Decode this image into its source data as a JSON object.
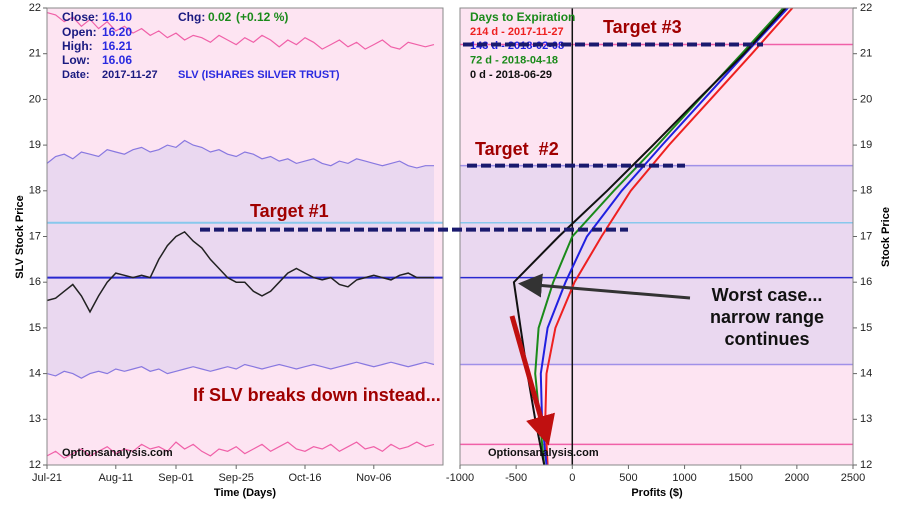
{
  "chart_data": [
    {
      "type": "line",
      "header": {
        "close_label": "Close:",
        "close": "16.10",
        "open_label": "Open:",
        "open": "16.20",
        "high_label": "High:",
        "high": "16.21",
        "low_label": "Low:",
        "low": "16.06",
        "date_label": "Date:",
        "date": "2017-11-27",
        "chg_label": "Chg:",
        "chg": "0.02",
        "chg_pct": "(+0.12 %)",
        "symbol": "SLV (ISHARES SILVER TRUST)"
      },
      "watermark": "Optionsanalysis.com",
      "x_label": "Time (Days)",
      "y_label": "SLV Stock Price",
      "categories": [
        "Jul-21",
        null,
        null,
        null,
        null,
        null,
        null,
        null,
        "Aug-11",
        null,
        null,
        null,
        null,
        null,
        null,
        "Sep-01",
        null,
        null,
        null,
        null,
        null,
        null,
        "Sep-25",
        null,
        null,
        null,
        null,
        null,
        null,
        null,
        "Oct-16",
        null,
        null,
        null,
        null,
        null,
        null,
        null,
        "Nov-06",
        null,
        null,
        null,
        null,
        null,
        null,
        null
      ],
      "series": [
        {
          "color": "#222222",
          "values": [
            15.6,
            15.65,
            15.8,
            15.95,
            15.7,
            15.35,
            15.7,
            16.0,
            16.2,
            16.15,
            16.1,
            16.15,
            16.1,
            16.5,
            16.8,
            17.0,
            17.1,
            16.9,
            16.75,
            16.5,
            16.3,
            16.1,
            16.0,
            16.0,
            15.8,
            15.7,
            15.8,
            16.0,
            16.2,
            16.3,
            16.2,
            16.1,
            16.05,
            16.1,
            15.95,
            15.9,
            16.05,
            16.1,
            16.15,
            16.1,
            16.05,
            16.15,
            16.2,
            16.1,
            16.1,
            16.1
          ]
        },
        {
          "color": "#8878e0",
          "values": [
            18.6,
            18.75,
            18.8,
            18.7,
            18.85,
            18.8,
            18.75,
            18.9,
            18.85,
            18.8,
            18.9,
            18.95,
            18.85,
            18.9,
            19.0,
            18.95,
            19.1,
            19.0,
            18.95,
            18.85,
            18.9,
            18.8,
            18.75,
            18.85,
            18.8,
            18.7,
            18.75,
            18.65,
            18.7,
            18.6,
            18.65,
            18.7,
            18.6,
            18.55,
            18.65,
            18.6,
            18.7,
            18.65,
            18.6,
            18.55,
            18.6,
            18.65,
            18.55,
            18.5,
            18.55,
            18.55
          ]
        },
        {
          "color": "#8878e0",
          "values": [
            14.0,
            13.95,
            14.05,
            14.0,
            13.9,
            14.0,
            14.05,
            14.0,
            14.1,
            14.05,
            14.1,
            14.15,
            14.05,
            14.1,
            14.0,
            14.05,
            14.1,
            14.15,
            14.1,
            14.05,
            14.1,
            14.15,
            14.1,
            14.2,
            14.15,
            14.1,
            14.15,
            14.2,
            14.15,
            14.1,
            14.15,
            14.2,
            14.15,
            14.1,
            14.15,
            14.2,
            14.25,
            14.2,
            14.15,
            14.2,
            14.25,
            14.2,
            14.15,
            14.2,
            14.25,
            14.2
          ]
        },
        {
          "color": "#f060a8",
          "values": [
            21.9,
            21.85,
            21.7,
            21.8,
            21.6,
            21.75,
            21.55,
            21.7,
            21.5,
            21.6,
            21.45,
            21.55,
            21.4,
            21.5,
            21.35,
            21.45,
            21.3,
            21.4,
            21.35,
            21.25,
            21.4,
            21.3,
            21.2,
            21.35,
            21.25,
            21.4,
            21.3,
            21.15,
            21.3,
            21.2,
            21.35,
            21.25,
            21.1,
            21.2,
            21.3,
            21.15,
            21.25,
            21.1,
            21.2,
            21.3,
            21.15,
            21.1,
            21.25,
            21.2,
            21.15,
            21.2
          ]
        },
        {
          "color": "#f060a8",
          "values": [
            12.2,
            12.3,
            12.15,
            12.25,
            12.35,
            12.2,
            12.3,
            12.4,
            12.25,
            12.35,
            12.3,
            12.45,
            12.35,
            12.4,
            12.3,
            12.5,
            12.35,
            12.45,
            12.3,
            12.2,
            12.35,
            12.3,
            12.4,
            12.25,
            12.35,
            12.45,
            12.3,
            12.4,
            12.5,
            12.35,
            12.3,
            12.4,
            12.35,
            12.45,
            12.3,
            12.4,
            12.5,
            12.35,
            12.4,
            12.3,
            12.45,
            12.35,
            12.4,
            12.5,
            12.4,
            12.45
          ]
        }
      ],
      "hlines": [
        {
          "value": 17.3,
          "color": "#88c8ec"
        },
        {
          "value": 16.1,
          "color": "#2828d0"
        }
      ],
      "background": "#fde4f2",
      "band_color": "#ead8f0",
      "ylim": [
        12,
        22
      ],
      "yticks": [
        12,
        13,
        14,
        15,
        16,
        17,
        18,
        19,
        20,
        21,
        22
      ]
    },
    {
      "type": "line",
      "watermark": "Optionsanalysis.com",
      "x_label": "Profits ($)",
      "y_label": "Stock Price",
      "legend_title": "Days to Expiration",
      "y": [
        12,
        13,
        14,
        15,
        16,
        17,
        18,
        19,
        20,
        21,
        22
      ],
      "series": [
        {
          "name": "214 d - 2017-11-27",
          "color": "#ee2020",
          "values": [
            -220,
            -240,
            -230,
            -150,
            20,
            260,
            520,
            860,
            1230,
            1600,
            1960
          ]
        },
        {
          "name": "143 d - 2018-02-08",
          "color": "#2020e0",
          "values": [
            -230,
            -270,
            -280,
            -220,
            -60,
            130,
            440,
            800,
            1170,
            1540,
            1920
          ]
        },
        {
          "name": "72 d - 2018-04-18",
          "color": "#1a8a1a",
          "values": [
            -250,
            -290,
            -330,
            -300,
            -170,
            0,
            370,
            760,
            1130,
            1510,
            1880
          ]
        },
        {
          "name": "0 d - 2018-06-29",
          "color": "#111111",
          "values": [
            -250,
            -330,
            -400,
            -460,
            -520,
            -120,
            310,
            720,
            1120,
            1530,
            1900
          ]
        }
      ],
      "hlines": [
        {
          "value": 21.2,
          "color": "#f060a8"
        },
        {
          "value": 18.55,
          "color": "#a090e8"
        },
        {
          "value": 17.3,
          "color": "#88c8ec"
        },
        {
          "value": 16.1,
          "color": "#2828d0"
        },
        {
          "value": 14.2,
          "color": "#a090e8"
        },
        {
          "value": 12.45,
          "color": "#f060a8"
        }
      ],
      "band": [
        14.2,
        18.55
      ],
      "background": "#fde4f2",
      "band_color": "#ead8f0",
      "xlim": [
        -1000,
        2500
      ],
      "xticks": [
        -1000,
        -500,
        0,
        500,
        1000,
        1500,
        2000,
        2500
      ],
      "ylim": [
        12,
        22
      ],
      "yticks": [
        12,
        13,
        14,
        15,
        16,
        17,
        18,
        19,
        20,
        21,
        22
      ]
    }
  ],
  "annotations": {
    "targets": [
      {
        "label": "Target #1",
        "value": 17.15
      },
      {
        "label": "Target  #2",
        "value": 18.55
      },
      {
        "label": "Target #3",
        "value": 21.2
      }
    ],
    "worst_case": [
      "Worst case...",
      "narrow range",
      "continues"
    ],
    "breakdown": "If SLV breaks down instead..."
  }
}
